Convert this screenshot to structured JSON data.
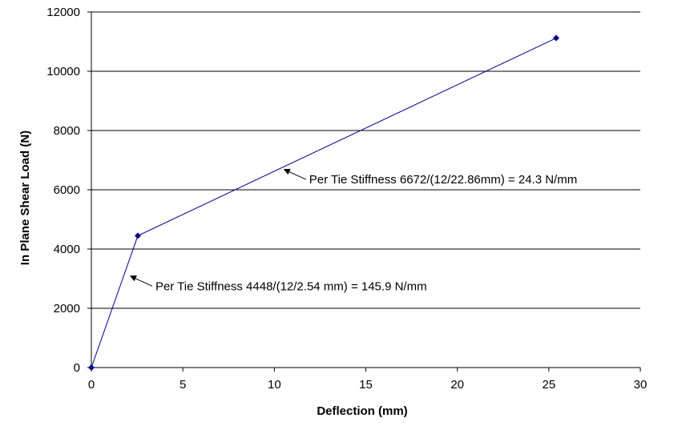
{
  "chart_data": {
    "type": "line",
    "xlabel": "Deflection (mm)",
    "ylabel": "In Plane Shear Load (N)",
    "xlim": [
      0,
      30
    ],
    "ylim": [
      0,
      12000
    ],
    "x_ticks": [
      "0",
      "5",
      "10",
      "15",
      "20",
      "25",
      "30"
    ],
    "y_ticks": [
      "0",
      "2000",
      "4000",
      "6000",
      "8000",
      "10000",
      "12000"
    ],
    "grid": "horizontal",
    "series": [
      {
        "color": "#00008b",
        "marker": "diamond",
        "points": [
          {
            "x": 0,
            "y": 0
          },
          {
            "x": 2.54,
            "y": 4448
          },
          {
            "x": 25.4,
            "y": 11120
          }
        ]
      }
    ],
    "annotations": [
      {
        "text": "Per Tie Stiffness 4448/(12/2.54 mm) = 145.9 N/mm",
        "target_x": 2.1,
        "target_y": 3100
      },
      {
        "text": "Per Tie Stiffness 6672/(12/22.86mm) = 24.3 N/mm",
        "target_x": 10.5,
        "target_y": 6700
      }
    ]
  }
}
